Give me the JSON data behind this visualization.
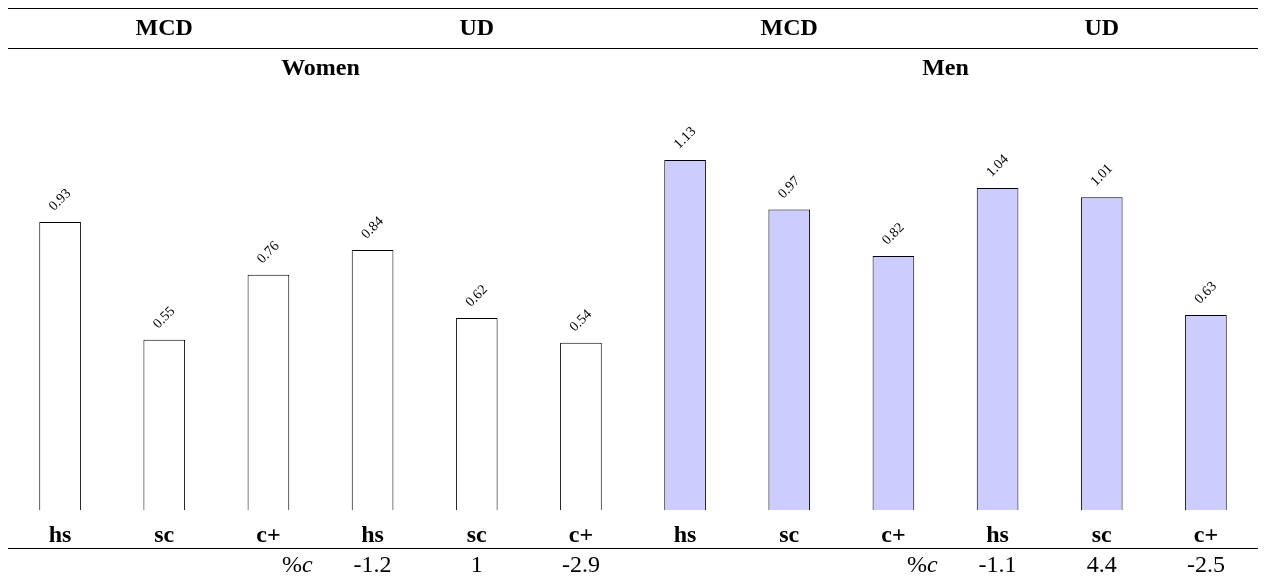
{
  "chart_data": {
    "type": "bar",
    "categories": [
      "hs",
      "sc",
      "c+",
      "hs",
      "sc",
      "c+",
      "hs",
      "sc",
      "c+",
      "hs",
      "sc",
      "c+"
    ],
    "series": [
      {
        "color": "#ffffff",
        "values": [
          0.93,
          0.55,
          0.76,
          0.84,
          0.62,
          0.54,
          null,
          null,
          null,
          null,
          null,
          null
        ]
      },
      {
        "color": "#ccccff",
        "values": [
          null,
          null,
          null,
          null,
          null,
          null,
          1.13,
          0.97,
          0.82,
          1.04,
          1.01,
          0.63
        ]
      }
    ],
    "data_labels": true,
    "annotations": [
      "MCD",
      "UD",
      "MCD",
      "UD",
      "Women",
      "Men",
      "%c",
      "-1.2",
      "1",
      "-2.9",
      "%c",
      "-1.1",
      "4.4",
      "-2.5"
    ]
  }
}
